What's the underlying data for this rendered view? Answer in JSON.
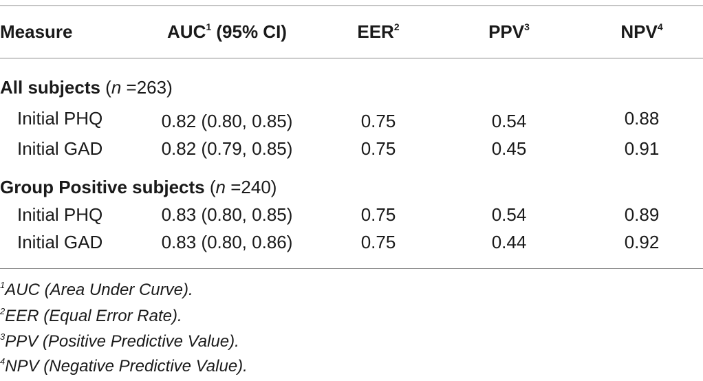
{
  "table": {
    "headers": [
      {
        "label": "Measure",
        "sup": ""
      },
      {
        "label": "AUC",
        "sup": "1",
        "suffix": " (95% CI)"
      },
      {
        "label": "EER",
        "sup": "2",
        "suffix": ""
      },
      {
        "label": "PPV",
        "sup": "3",
        "suffix": ""
      },
      {
        "label": "NPV",
        "sup": "4",
        "suffix": ""
      }
    ],
    "sections": [
      {
        "title": "All subjects",
        "n_label": "n",
        "n_eq": " =263)",
        "n_open": " (",
        "rows": [
          {
            "measure": "Initial PHQ",
            "auc": "0.82 (0.80, 0.85)",
            "eer": "0.75",
            "ppv": "0.54",
            "npv": "0.88"
          },
          {
            "measure": "Initial GAD",
            "auc": "0.82 (0.79, 0.85)",
            "eer": "0.75",
            "ppv": "0.45",
            "npv": "0.91"
          }
        ]
      },
      {
        "title": "Group Positive subjects",
        "n_label": "n",
        "n_eq": " =240)",
        "n_open": " (",
        "rows": [
          {
            "measure": "Initial PHQ",
            "auc": "0.83 (0.80, 0.85)",
            "eer": "0.75",
            "ppv": "0.54",
            "npv": "0.89"
          },
          {
            "measure": "Initial GAD",
            "auc": "0.83 (0.80, 0.86)",
            "eer": "0.75",
            "ppv": "0.44",
            "npv": "0.92"
          }
        ]
      }
    ]
  },
  "footnotes": [
    {
      "sup": "1",
      "text": "AUC (Area Under Curve)."
    },
    {
      "sup": "2",
      "text": "EER (Equal Error Rate)."
    },
    {
      "sup": "3",
      "text": "PPV (Positive Predictive Value)."
    },
    {
      "sup": "4",
      "text": "NPV (Negative Predictive Value)."
    }
  ]
}
